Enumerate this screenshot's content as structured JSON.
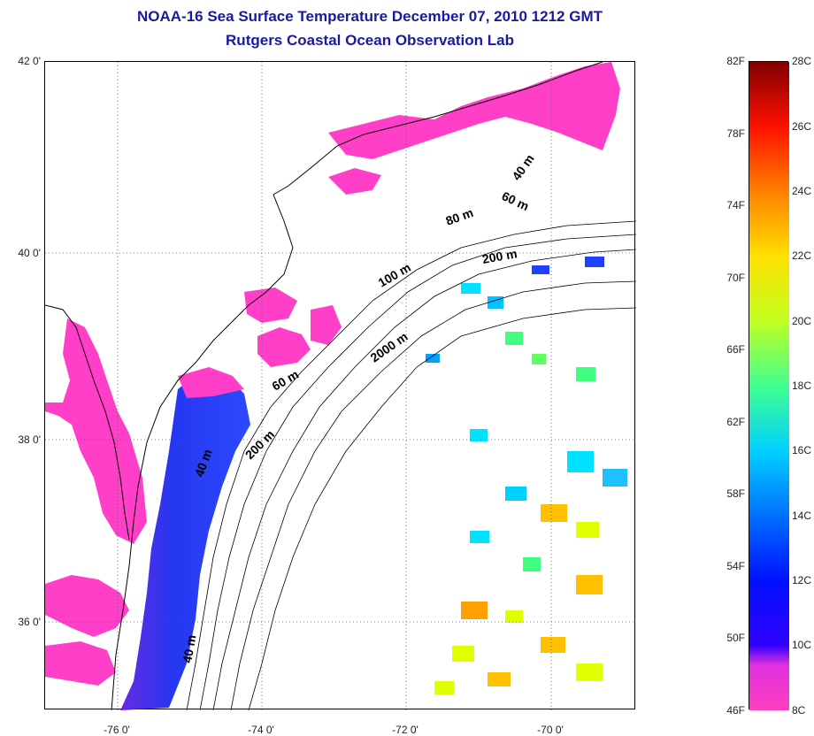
{
  "header": {
    "title": "NOAA-16 Sea Surface Temperature December 07, 2010 1212 GMT",
    "subtitle": "Rutgers Coastal Ocean Observation Lab"
  },
  "map": {
    "lat_labels": [
      "42 0'",
      "40 0'",
      "38 0'",
      "36 0'"
    ],
    "lon_labels": [
      "-76 0'",
      "-74 0'",
      "-72 0'",
      "-70 0'"
    ],
    "lat_range": [
      35,
      42
    ],
    "lon_range": [
      -77,
      -69
    ],
    "grid": "dotted",
    "isobath_labels": [
      "40 m",
      "60 m",
      "80 m",
      "200 m",
      "100 m",
      "2000 m",
      "60 m",
      "40 m",
      "200 m",
      "40 m"
    ],
    "colors": {
      "land": "#ffffff",
      "coastline": "#000000",
      "bay_water": "#ff3fc8",
      "shelf_water": "#2030e8",
      "no_data": "#ffffff"
    }
  },
  "colorbar": {
    "fahrenheit_labels": [
      "82F",
      "78F",
      "74F",
      "70F",
      "66F",
      "62F",
      "58F",
      "54F",
      "50F",
      "46F"
    ],
    "celsius_labels": [
      "28C",
      "26C",
      "24C",
      "22C",
      "20C",
      "18C",
      "16C",
      "14C",
      "12C",
      "10C",
      "8C"
    ],
    "range_c": [
      8,
      28
    ],
    "stops": [
      "#ff40c0",
      "#a020f0",
      "#0000ff",
      "#0080ff",
      "#00e0ff",
      "#40ff80",
      "#e0ff00",
      "#ffc000",
      "#ff6000",
      "#ff0000",
      "#800000"
    ]
  }
}
